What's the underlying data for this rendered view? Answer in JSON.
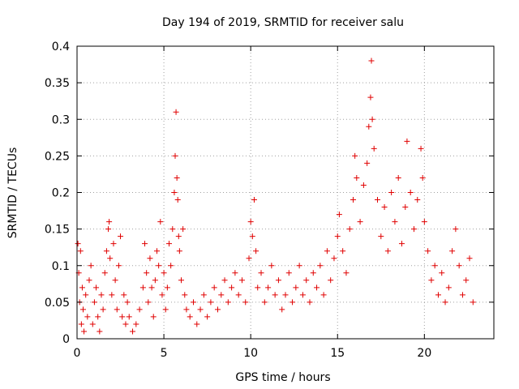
{
  "chart_data": {
    "type": "scatter",
    "title": "Day 194 of 2019, SRMTID for receiver salu",
    "xlabel": "GPS time / hours",
    "ylabel": "SRMTID / TECUs",
    "xlim": [
      0,
      24
    ],
    "ylim": [
      0,
      0.4
    ],
    "xticks": [
      0,
      5,
      10,
      15,
      20
    ],
    "xtick_labels": [
      "0",
      "5",
      "10",
      "15",
      "20"
    ],
    "yticks": [
      0,
      0.05,
      0.1,
      0.15,
      0.2,
      0.25,
      0.3,
      0.35,
      0.4
    ],
    "ytick_labels": [
      "0",
      "0.05",
      "0.1",
      "0.15",
      "0.2",
      "0.25",
      "0.3",
      "0.35",
      "0.4"
    ],
    "grid": true,
    "marker": "+",
    "color": "#e00000",
    "series": [
      {
        "points": [
          [
            0.05,
            0.13
          ],
          [
            0.1,
            0.09
          ],
          [
            0.15,
            0.05
          ],
          [
            0.2,
            0.12
          ],
          [
            0.25,
            0.02
          ],
          [
            0.3,
            0.07
          ],
          [
            0.35,
            0.04
          ],
          [
            0.4,
            0.01
          ],
          [
            0.5,
            0.06
          ],
          [
            0.6,
            0.03
          ],
          [
            0.7,
            0.08
          ],
          [
            0.8,
            0.1
          ],
          [
            0.9,
            0.02
          ],
          [
            1.0,
            0.05
          ],
          [
            1.1,
            0.07
          ],
          [
            1.2,
            0.03
          ],
          [
            1.3,
            0.01
          ],
          [
            1.4,
            0.06
          ],
          [
            1.5,
            0.04
          ],
          [
            1.6,
            0.09
          ],
          [
            1.7,
            0.12
          ],
          [
            1.8,
            0.15
          ],
          [
            1.85,
            0.16
          ],
          [
            1.9,
            0.11
          ],
          [
            2.0,
            0.06
          ],
          [
            2.1,
            0.13
          ],
          [
            2.2,
            0.08
          ],
          [
            2.3,
            0.04
          ],
          [
            2.4,
            0.1
          ],
          [
            2.5,
            0.14
          ],
          [
            2.6,
            0.03
          ],
          [
            2.7,
            0.06
          ],
          [
            2.8,
            0.02
          ],
          [
            2.9,
            0.05
          ],
          [
            3.0,
            0.03
          ],
          [
            3.2,
            0.01
          ],
          [
            3.4,
            0.02
          ],
          [
            3.6,
            0.04
          ],
          [
            3.8,
            0.07
          ],
          [
            3.9,
            0.13
          ],
          [
            4.0,
            0.09
          ],
          [
            4.1,
            0.05
          ],
          [
            4.2,
            0.11
          ],
          [
            4.3,
            0.07
          ],
          [
            4.4,
            0.03
          ],
          [
            4.5,
            0.08
          ],
          [
            4.6,
            0.12
          ],
          [
            4.7,
            0.1
          ],
          [
            4.8,
            0.16
          ],
          [
            4.9,
            0.06
          ],
          [
            5.0,
            0.09
          ],
          [
            5.1,
            0.04
          ],
          [
            5.2,
            0.07
          ],
          [
            5.3,
            0.13
          ],
          [
            5.4,
            0.1
          ],
          [
            5.5,
            0.15
          ],
          [
            5.6,
            0.2
          ],
          [
            5.65,
            0.25
          ],
          [
            5.7,
            0.31
          ],
          [
            5.75,
            0.22
          ],
          [
            5.8,
            0.19
          ],
          [
            5.85,
            0.14
          ],
          [
            5.9,
            0.12
          ],
          [
            6.0,
            0.08
          ],
          [
            6.1,
            0.15
          ],
          [
            6.2,
            0.06
          ],
          [
            6.3,
            0.04
          ],
          [
            6.5,
            0.03
          ],
          [
            6.7,
            0.05
          ],
          [
            6.9,
            0.02
          ],
          [
            7.1,
            0.04
          ],
          [
            7.3,
            0.06
          ],
          [
            7.5,
            0.03
          ],
          [
            7.7,
            0.05
          ],
          [
            7.9,
            0.07
          ],
          [
            8.1,
            0.04
          ],
          [
            8.3,
            0.06
          ],
          [
            8.5,
            0.08
          ],
          [
            8.7,
            0.05
          ],
          [
            8.9,
            0.07
          ],
          [
            9.1,
            0.09
          ],
          [
            9.3,
            0.06
          ],
          [
            9.5,
            0.08
          ],
          [
            9.7,
            0.05
          ],
          [
            9.9,
            0.11
          ],
          [
            10.0,
            0.16
          ],
          [
            10.1,
            0.14
          ],
          [
            10.2,
            0.19
          ],
          [
            10.3,
            0.12
          ],
          [
            10.4,
            0.07
          ],
          [
            10.6,
            0.09
          ],
          [
            10.8,
            0.05
          ],
          [
            11.0,
            0.07
          ],
          [
            11.2,
            0.1
          ],
          [
            11.4,
            0.06
          ],
          [
            11.6,
            0.08
          ],
          [
            11.8,
            0.04
          ],
          [
            12.0,
            0.06
          ],
          [
            12.2,
            0.09
          ],
          [
            12.4,
            0.05
          ],
          [
            12.6,
            0.07
          ],
          [
            12.8,
            0.1
          ],
          [
            13.0,
            0.06
          ],
          [
            13.2,
            0.08
          ],
          [
            13.4,
            0.05
          ],
          [
            13.6,
            0.09
          ],
          [
            13.8,
            0.07
          ],
          [
            14.0,
            0.1
          ],
          [
            14.2,
            0.06
          ],
          [
            14.4,
            0.12
          ],
          [
            14.6,
            0.08
          ],
          [
            14.8,
            0.11
          ],
          [
            15.0,
            0.14
          ],
          [
            15.1,
            0.17
          ],
          [
            15.3,
            0.12
          ],
          [
            15.5,
            0.09
          ],
          [
            15.7,
            0.15
          ],
          [
            15.9,
            0.19
          ],
          [
            16.0,
            0.25
          ],
          [
            16.1,
            0.22
          ],
          [
            16.3,
            0.16
          ],
          [
            16.5,
            0.21
          ],
          [
            16.7,
            0.24
          ],
          [
            16.8,
            0.29
          ],
          [
            16.9,
            0.33
          ],
          [
            16.95,
            0.38
          ],
          [
            17.0,
            0.3
          ],
          [
            17.1,
            0.26
          ],
          [
            17.3,
            0.19
          ],
          [
            17.5,
            0.14
          ],
          [
            17.7,
            0.18
          ],
          [
            17.9,
            0.12
          ],
          [
            18.1,
            0.2
          ],
          [
            18.3,
            0.16
          ],
          [
            18.5,
            0.22
          ],
          [
            18.7,
            0.13
          ],
          [
            18.9,
            0.18
          ],
          [
            19.0,
            0.27
          ],
          [
            19.2,
            0.2
          ],
          [
            19.4,
            0.15
          ],
          [
            19.6,
            0.19
          ],
          [
            19.8,
            0.26
          ],
          [
            19.9,
            0.22
          ],
          [
            20.0,
            0.16
          ],
          [
            20.2,
            0.12
          ],
          [
            20.4,
            0.08
          ],
          [
            20.6,
            0.1
          ],
          [
            20.8,
            0.06
          ],
          [
            21.0,
            0.09
          ],
          [
            21.2,
            0.05
          ],
          [
            21.4,
            0.07
          ],
          [
            21.6,
            0.12
          ],
          [
            21.8,
            0.15
          ],
          [
            22.0,
            0.1
          ],
          [
            22.2,
            0.06
          ],
          [
            22.4,
            0.08
          ],
          [
            22.6,
            0.11
          ],
          [
            22.8,
            0.05
          ]
        ]
      }
    ]
  }
}
